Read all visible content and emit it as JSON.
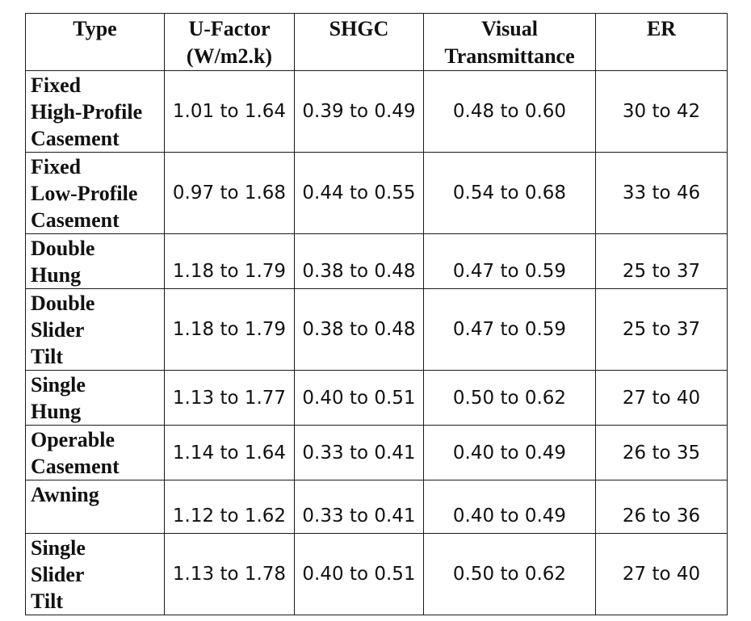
{
  "table": {
    "headers": [
      [
        "Type"
      ],
      [
        "U-Factor",
        "(W/m2.k)"
      ],
      [
        "SHGC"
      ],
      [
        "Visual",
        "Transmittance"
      ],
      [
        "ER"
      ]
    ],
    "rows": [
      {
        "type_lines": [
          "Fixed",
          "High-Profile",
          "Casement"
        ],
        "u_factor": "1.01 to 1.64",
        "shgc": "0.39 to 0.49",
        "visual_transmittance": "0.48 to 0.60",
        "er": "30 to 42"
      },
      {
        "type_lines": [
          "Fixed",
          "Low-Profile",
          "Casement"
        ],
        "u_factor": "0.97 to 1.68",
        "shgc": "0.44 to 0.55",
        "visual_transmittance": "0.54 to 0.68",
        "er": "33 to 46"
      },
      {
        "type_lines": [
          "Double",
          "Hung"
        ],
        "u_factor": "1.18 to 1.79",
        "shgc": "0.38 to 0.48",
        "visual_transmittance": "0.47 to 0.59",
        "er": "25 to 37"
      },
      {
        "type_lines": [
          "Double",
          "Slider",
          "Tilt"
        ],
        "u_factor": "1.18 to 1.79",
        "shgc": "0.38 to 0.48",
        "visual_transmittance": "0.47 to 0.59",
        "er": "25 to 37"
      },
      {
        "type_lines": [
          "Single",
          "Hung"
        ],
        "u_factor": "1.13 to 1.77",
        "shgc": "0.40 to 0.51",
        "visual_transmittance": "0.50 to 0.62",
        "er": "27 to 40"
      },
      {
        "type_lines": [
          "Operable",
          "Casement"
        ],
        "u_factor": "1.14 to 1.64",
        "shgc": "0.33 to 0.41",
        "visual_transmittance": "0.40 to 0.49",
        "er": "26 to 35"
      },
      {
        "type_lines": [
          "Awning"
        ],
        "u_factor": "1.12 to 1.62",
        "shgc": "0.33 to 0.41",
        "visual_transmittance": "0.40 to 0.49",
        "er": "26 to 36"
      },
      {
        "type_lines": [
          "Single",
          "Slider",
          "Tilt"
        ],
        "u_factor": "1.13 to 1.78",
        "shgc": "0.40 to 0.51",
        "visual_transmittance": "0.50 to 0.62",
        "er": "27 to 40"
      }
    ]
  }
}
